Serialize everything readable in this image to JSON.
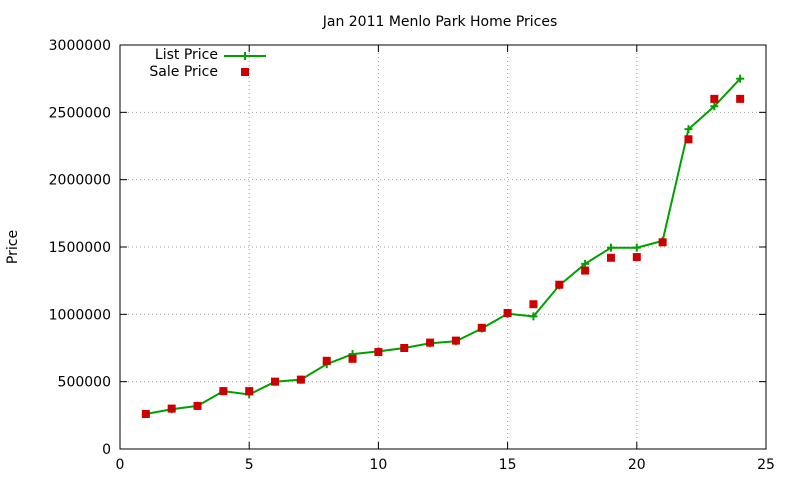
{
  "chart_data": {
    "type": "line",
    "title": "Jan 2011 Menlo Park Home Prices",
    "xlabel": "",
    "ylabel": "Price",
    "xlim": [
      0,
      25
    ],
    "ylim": [
      0,
      3000000
    ],
    "xticks": [
      0,
      5,
      10,
      15,
      20,
      25
    ],
    "yticks": [
      0,
      500000,
      1000000,
      1500000,
      2000000,
      2500000,
      3000000
    ],
    "grid": true,
    "legend_position": "top-left",
    "series": [
      {
        "name": "List Price",
        "style": "line-with-plus",
        "color": "#00a000",
        "x": [
          1,
          2,
          3,
          4,
          5,
          6,
          7,
          8,
          9,
          10,
          11,
          12,
          13,
          14,
          15,
          16,
          17,
          18,
          19,
          20,
          21,
          22,
          23,
          24
        ],
        "y": [
          260000,
          295000,
          320000,
          430000,
          405000,
          500000,
          515000,
          630000,
          705000,
          725000,
          750000,
          785000,
          800000,
          895000,
          1005000,
          985000,
          1215000,
          1375000,
          1495000,
          1495000,
          1545000,
          2375000,
          2545000,
          2750000
        ]
      },
      {
        "name": "Sale Price",
        "style": "square-markers",
        "color": "#cc0000",
        "x": [
          1,
          2,
          3,
          4,
          5,
          6,
          7,
          8,
          9,
          10,
          11,
          12,
          13,
          14,
          15,
          16,
          17,
          18,
          19,
          20,
          21,
          22,
          23,
          24
        ],
        "y": [
          260000,
          300000,
          320000,
          430000,
          430000,
          500000,
          515000,
          655000,
          670000,
          720000,
          750000,
          790000,
          805000,
          900000,
          1010000,
          1075000,
          1220000,
          1325000,
          1420000,
          1425000,
          1535000,
          2300000,
          2600000,
          2600000
        ]
      }
    ]
  }
}
